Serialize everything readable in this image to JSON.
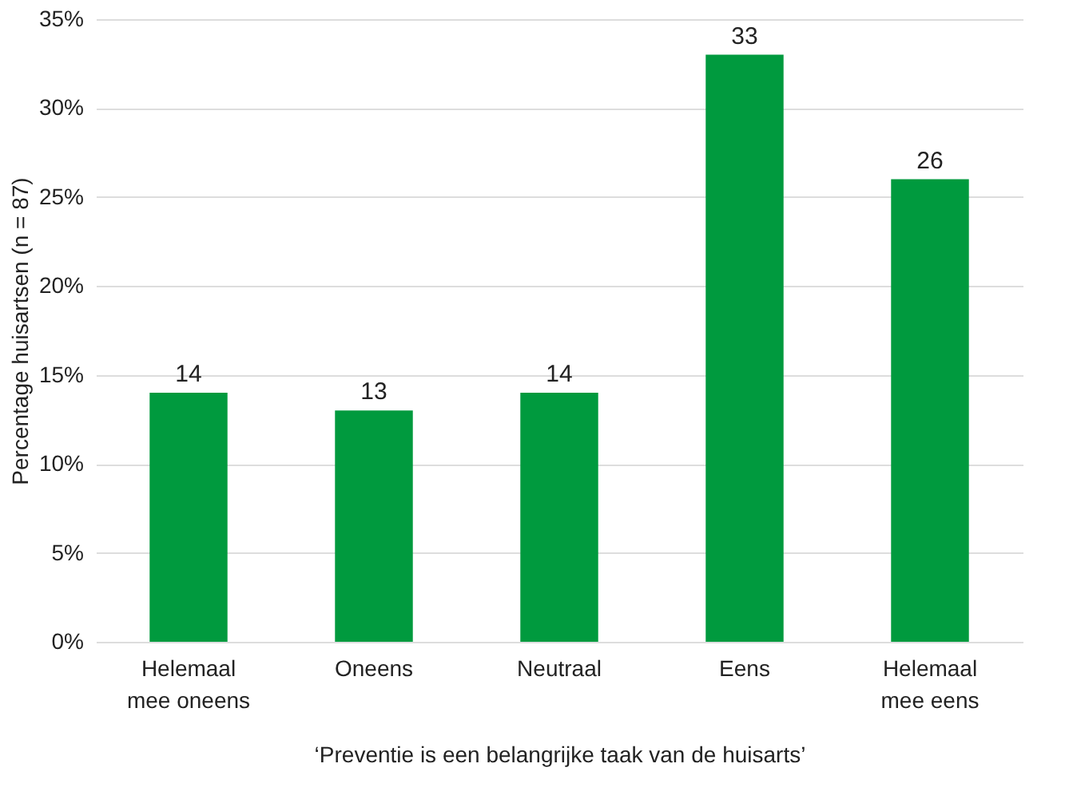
{
  "chart_data": {
    "type": "bar",
    "xlabel": "‘Preventie is een belangrijke taak van de huisarts’",
    "ylabel": "Percentage huisartsen (n = 87)",
    "categories": [
      "Helemaal mee oneens",
      "Oneens",
      "Neutraal",
      "Eens",
      "Helemaal mee eens"
    ],
    "values": [
      14,
      13,
      14,
      33,
      26
    ],
    "color": "#009a3e",
    "data_labels": true,
    "ylim": [
      0,
      35
    ],
    "yticks": [
      {
        "value": 0,
        "label": "0%"
      },
      {
        "value": 5,
        "label": "5%"
      },
      {
        "value": 10,
        "label": "10%"
      },
      {
        "value": 15,
        "label": "15%"
      },
      {
        "value": 20,
        "label": "20%"
      },
      {
        "value": 25,
        "label": "25%"
      },
      {
        "value": 30,
        "label": "30%"
      },
      {
        "value": 35,
        "label": "35%"
      }
    ],
    "grid": "y"
  }
}
